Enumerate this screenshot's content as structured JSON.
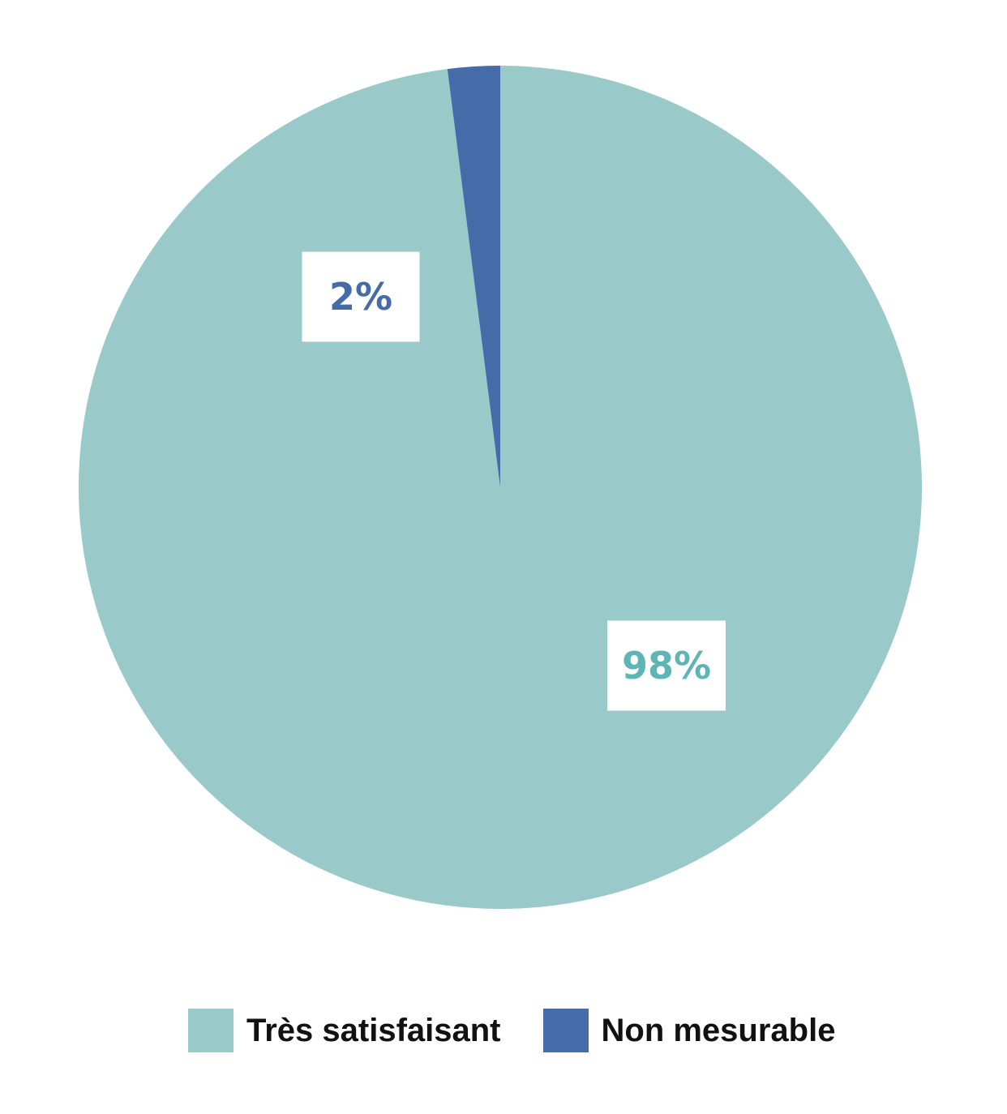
{
  "chart_data": {
    "type": "pie",
    "slices": [
      {
        "label": "Très satisfaisant",
        "value": 98,
        "display": "98%",
        "color": "#99c9c9",
        "label_color": "#5fb5b5"
      },
      {
        "label": "Non mesurable",
        "value": 2,
        "display": "2%",
        "color": "#466ba9",
        "label_color": "#466ba9"
      }
    ],
    "start": "top, clockwise",
    "legend_position": "bottom"
  }
}
